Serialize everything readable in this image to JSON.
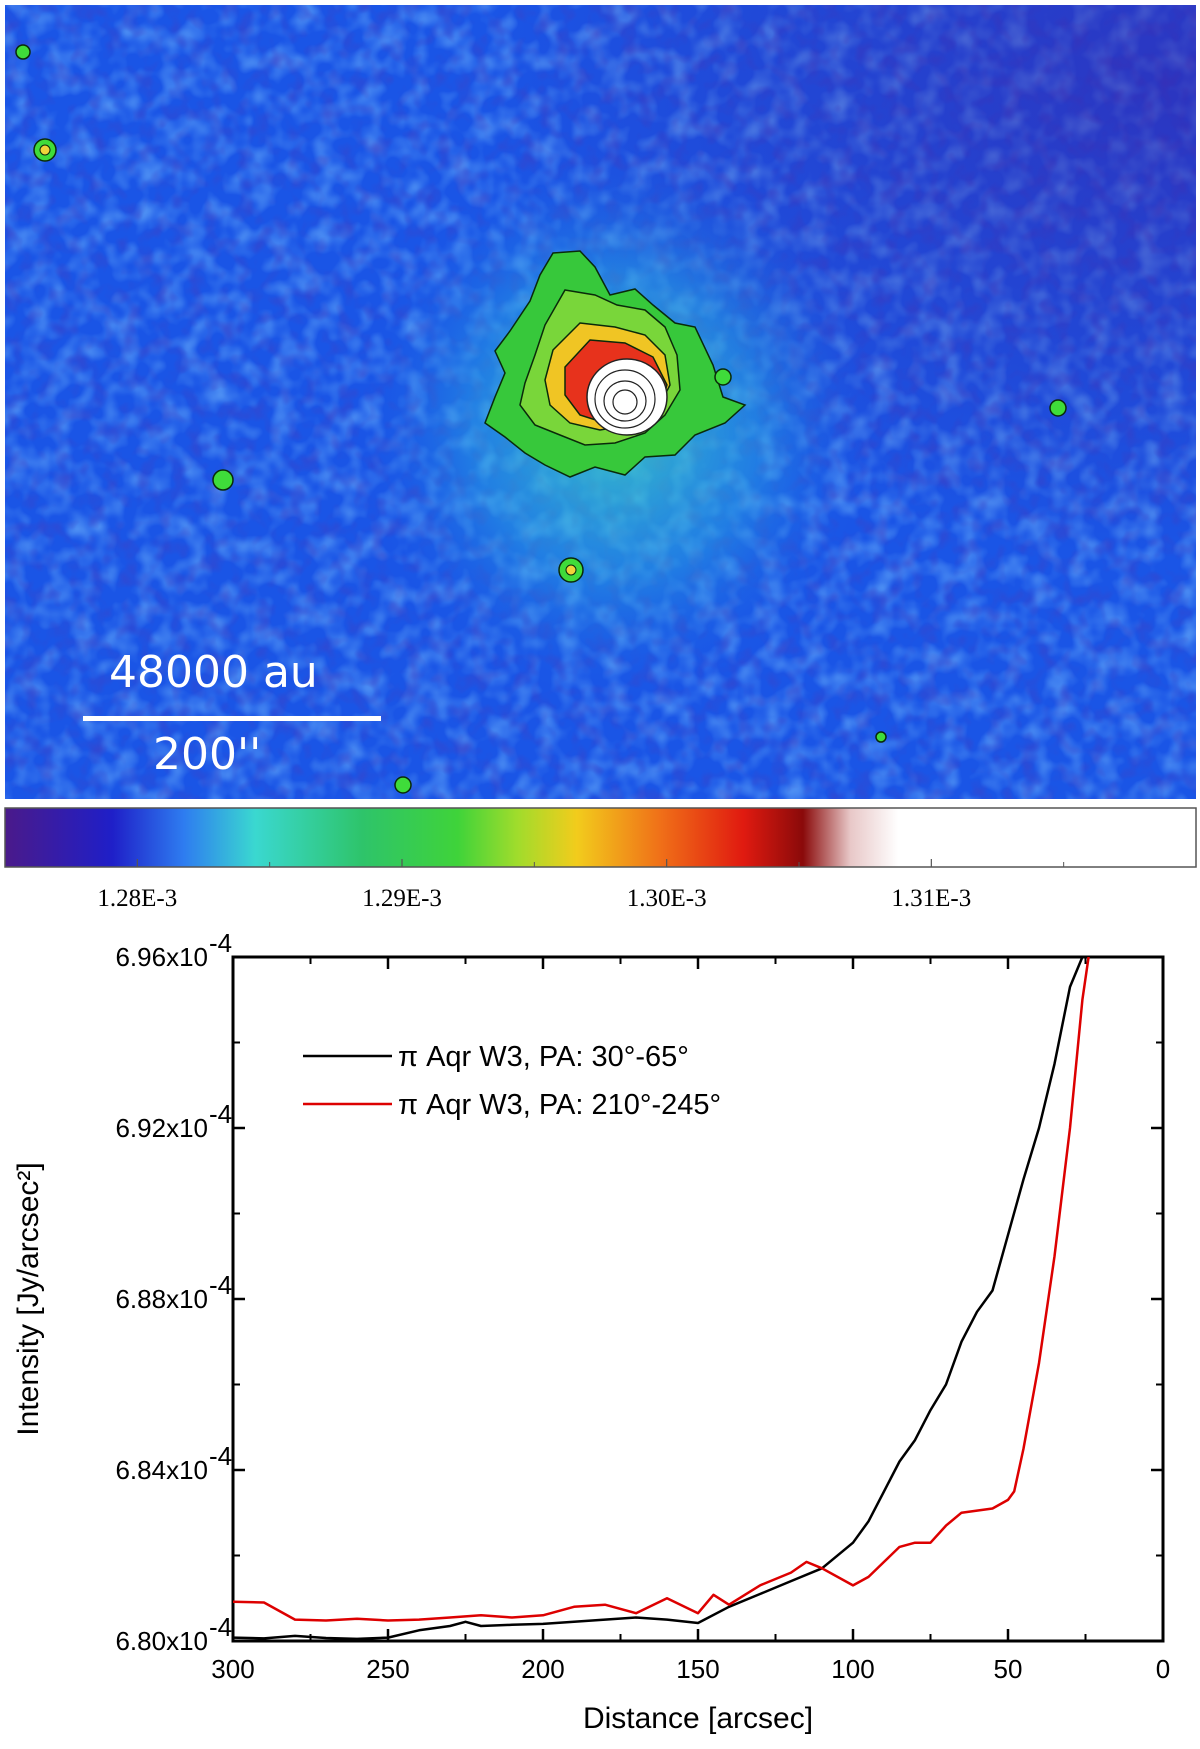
{
  "image_panel": {
    "scale_bar": {
      "top_label": "48000 au",
      "bottom_label": "200''"
    }
  },
  "colorbar": {
    "tick_labels": [
      "1.28E-3",
      "1.29E-3",
      "1.30E-3",
      "1.31E-3"
    ],
    "range": [
      0.001275,
      0.00132
    ]
  },
  "colors": {
    "background": "#1a55e6",
    "line_black": "#000000",
    "line_red": "#dd0000"
  },
  "chart_data": {
    "type": "line",
    "title": "",
    "xlabel": "Distance [arcsec]",
    "ylabel": "Intensity [Jy/arcsec²]",
    "xlim": [
      300,
      0
    ],
    "ylim": [
      6.8,
      6.96
    ],
    "y_unit_exponent": "-4",
    "x_ticks": [
      "300",
      "250",
      "200",
      "150",
      "100",
      "50",
      "0"
    ],
    "y_ticks": [
      {
        "mantissa": "6.80x10",
        "exp": "-4"
      },
      {
        "mantissa": "6.84x10",
        "exp": "-4"
      },
      {
        "mantissa": "6.88x10",
        "exp": "-4"
      },
      {
        "mantissa": "6.92x10",
        "exp": "-4"
      },
      {
        "mantissa": "6.96x10",
        "exp": "-4"
      }
    ],
    "legend_position": "top-left",
    "series": [
      {
        "name": "π Aqr W3, PA: 30°-65°",
        "color": "#000000",
        "x": [
          300,
          290,
          280,
          270,
          260,
          250,
          240,
          230,
          225,
          220,
          210,
          200,
          190,
          180,
          170,
          160,
          150,
          140,
          130,
          120,
          110,
          100,
          95,
          90,
          85,
          80,
          75,
          70,
          65,
          60,
          55,
          50,
          45,
          40,
          35,
          30,
          26
        ],
        "y": [
          6.8008,
          6.8006,
          6.8012,
          6.8007,
          6.8005,
          6.8008,
          6.8025,
          6.8035,
          6.8045,
          6.8035,
          6.8038,
          6.804,
          6.8045,
          6.805,
          6.8055,
          6.805,
          6.8042,
          6.808,
          6.811,
          6.814,
          6.817,
          6.823,
          6.828,
          6.835,
          6.842,
          6.847,
          6.854,
          6.86,
          6.87,
          6.877,
          6.882,
          6.895,
          6.908,
          6.92,
          6.935,
          6.953,
          6.96
        ]
      },
      {
        "name": "π Aqr W3, PA: 210°-245°",
        "color": "#dd0000",
        "x": [
          300,
          290,
          280,
          270,
          260,
          250,
          240,
          230,
          220,
          210,
          200,
          190,
          180,
          170,
          160,
          150,
          145,
          140,
          130,
          120,
          115,
          110,
          100,
          95,
          90,
          85,
          80,
          75,
          70,
          65,
          60,
          55,
          50,
          48,
          45,
          40,
          35,
          30,
          26,
          24
        ],
        "y": [
          6.8092,
          6.809,
          6.805,
          6.8048,
          6.8052,
          6.8048,
          6.805,
          6.8055,
          6.806,
          6.8055,
          6.806,
          6.808,
          6.8085,
          6.8065,
          6.81,
          6.8065,
          6.8108,
          6.8085,
          6.813,
          6.816,
          6.8185,
          6.817,
          6.813,
          6.815,
          6.8185,
          6.822,
          6.823,
          6.823,
          6.827,
          6.83,
          6.8305,
          6.831,
          6.833,
          6.835,
          6.845,
          6.865,
          6.89,
          6.92,
          6.95,
          6.96
        ]
      }
    ]
  }
}
